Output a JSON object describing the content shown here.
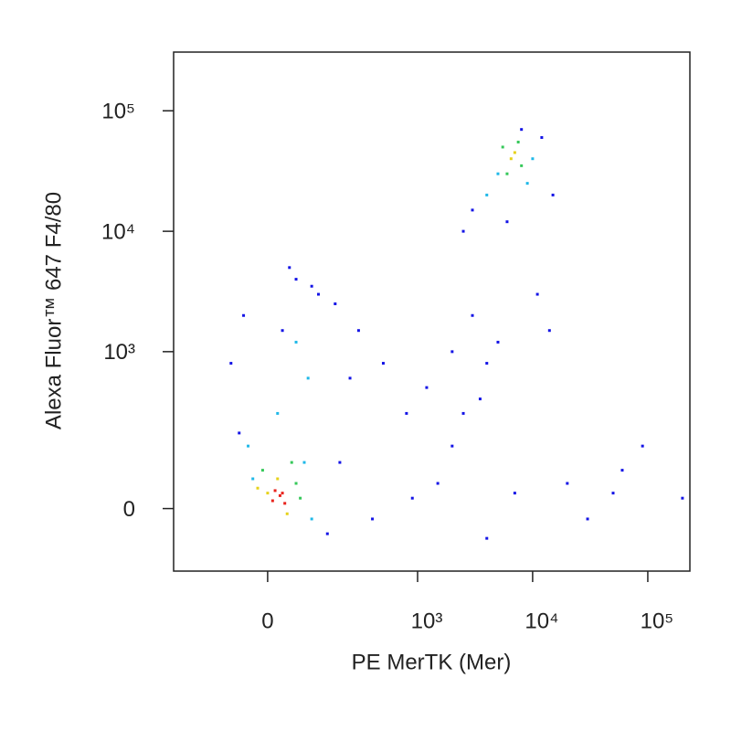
{
  "chart_data": {
    "type": "scatter",
    "xlabel": "PE MerTK (Mer)",
    "ylabel": "Alexa Fluor™ 647 F4/80",
    "scale": "biexponential",
    "xlim": [
      -320,
      232000
    ],
    "ylim": [
      -150,
      307000
    ],
    "xticks": [
      0,
      {
        "value": 1000,
        "label": "10³"
      },
      {
        "value": 10000,
        "label": "10⁴"
      },
      {
        "value": 100000,
        "label": "10⁵"
      }
    ],
    "yticks": [
      0,
      {
        "value": 1000,
        "label": "10³"
      },
      {
        "value": 10000,
        "label": "10⁴"
      },
      {
        "value": 100000,
        "label": "10⁵"
      }
    ],
    "series": [
      {
        "color": "#1414e6",
        "x": [
          -60,
          150,
          200,
          -50,
          120,
          300,
          500,
          800,
          1200,
          2000,
          3000,
          4000,
          5000,
          3000,
          2500,
          6000,
          8000,
          12000,
          15000,
          3500,
          2000,
          1500,
          900,
          400,
          250,
          180,
          100,
          60,
          -80,
          30,
          45,
          50000,
          90000,
          60000,
          200000,
          30000,
          20000,
          4000,
          7000,
          11000,
          14000,
          2500
        ],
        "y": [
          200,
          -50,
          100,
          2000,
          3000,
          1500,
          800,
          300,
          500,
          1000,
          2000,
          800,
          1200,
          15000,
          10000,
          12000,
          70000,
          60000,
          20000,
          400,
          150,
          50,
          20,
          -20,
          600,
          2500,
          3500,
          4000,
          800,
          1500,
          5000,
          30,
          150,
          80,
          20,
          -20,
          50,
          -60,
          30,
          3000,
          1500,
          300
        ]
      },
      {
        "color": "#1fb8e8",
        "x": [
          -40,
          80,
          100,
          -30,
          20,
          90,
          5000,
          9000,
          4000,
          10000,
          60
        ],
        "y": [
          150,
          100,
          -20,
          60,
          300,
          600,
          30000,
          25000,
          20000,
          40000,
          1200
        ]
      },
      {
        "color": "#36c85a",
        "x": [
          60,
          -10,
          70,
          50,
          6000,
          8000,
          5500,
          7500
        ],
        "y": [
          50,
          80,
          20,
          100,
          30000,
          35000,
          50000,
          55000
        ]
      },
      {
        "color": "#e6d21a",
        "x": [
          -20,
          40,
          0,
          20,
          6500,
          7000
        ],
        "y": [
          40,
          -10,
          30,
          60,
          40000,
          45000
        ]
      },
      {
        "color": "#e8231c",
        "x": [
          10,
          25,
          35,
          15,
          30
        ],
        "y": [
          15,
          25,
          10,
          35,
          30
        ]
      }
    ]
  }
}
